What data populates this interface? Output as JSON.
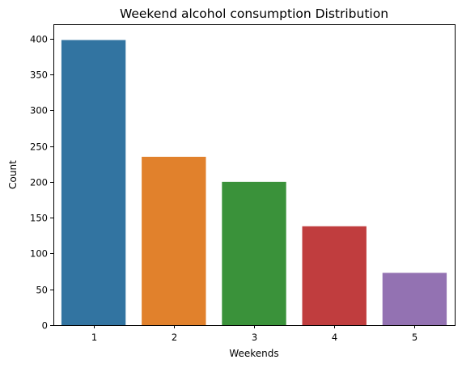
{
  "chart_data": {
    "type": "bar",
    "title": "Weekend alcohol consumption Distribution",
    "xlabel": "Weekends",
    "ylabel": "Count",
    "categories": [
      "1",
      "2",
      "3",
      "4",
      "5"
    ],
    "values": [
      398,
      235,
      200,
      138,
      73
    ],
    "colors": [
      "#3274a1",
      "#e1812c",
      "#3a923a",
      "#c03d3e",
      "#9372b2"
    ],
    "ylim": [
      0,
      420
    ],
    "yticks": [
      0,
      50,
      100,
      150,
      200,
      250,
      300,
      350,
      400
    ],
    "grid": false,
    "legend": "none"
  }
}
